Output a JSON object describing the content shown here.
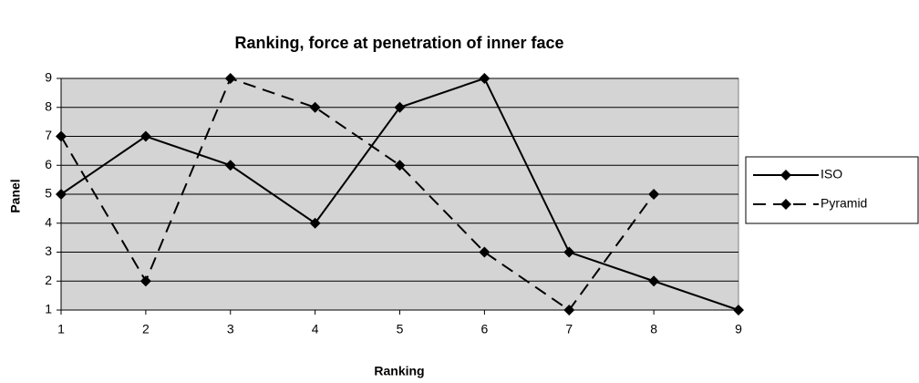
{
  "chart_data": {
    "type": "line",
    "title": "Ranking, force at penetration of inner face",
    "x_label": "Ranking",
    "y_label": "Panel",
    "x": [
      1,
      2,
      3,
      4,
      5,
      6,
      7,
      8,
      9
    ],
    "series": [
      {
        "name": "ISO",
        "color": "#000000",
        "dash": false,
        "values": [
          5,
          7,
          6,
          4,
          8,
          9,
          3,
          2,
          1
        ]
      },
      {
        "name": "Pyramid",
        "color": "#000000",
        "dash": true,
        "values": [
          7,
          2,
          9,
          8,
          6,
          3,
          1,
          5,
          null
        ]
      }
    ],
    "xlim": [
      1,
      9
    ],
    "xticks": [
      1,
      2,
      3,
      4,
      5,
      6,
      7,
      8,
      9
    ],
    "ylim": [
      1,
      9
    ],
    "yticks": [
      1,
      2,
      3,
      4,
      5,
      6,
      7,
      8,
      9
    ],
    "grid": true,
    "legend": "right",
    "plot_background": "#d4d4d4"
  }
}
